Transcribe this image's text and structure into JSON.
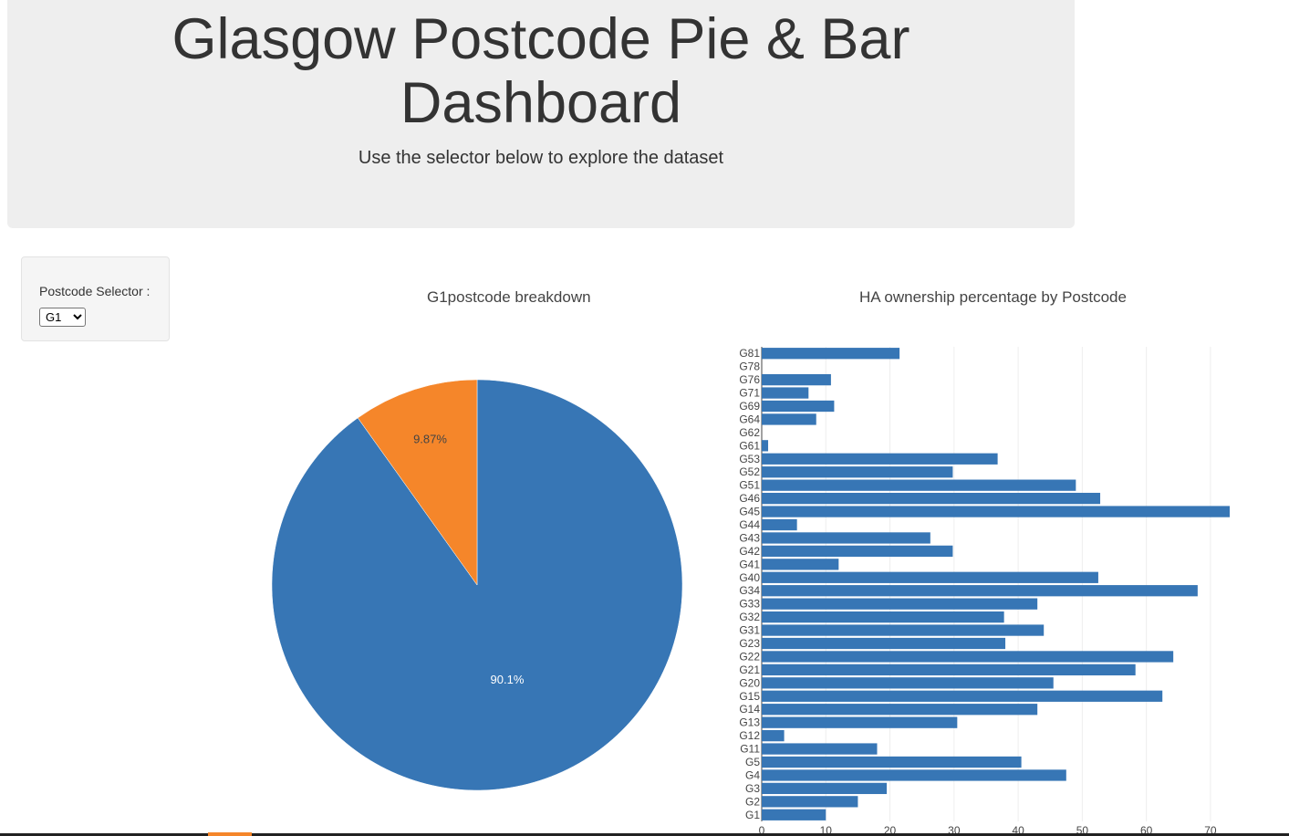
{
  "header": {
    "title_line1": "Glasgow Postcode Pie & Bar",
    "title_line2": "Dashboard",
    "subtitle": "Use the selector below to explore the dataset"
  },
  "selector": {
    "label": "Postcode Selector :",
    "selected": "G1",
    "options": [
      "G1"
    ]
  },
  "colors": {
    "blue": "#3776b5",
    "orange": "#f5862a"
  },
  "chart_data": [
    {
      "type": "pie",
      "title": "G1postcode breakdown",
      "slices": [
        {
          "label": "90.1%",
          "value": 90.13,
          "color": "#3776b5"
        },
        {
          "label": "9.87%",
          "value": 9.87,
          "color": "#f5862a"
        }
      ]
    },
    {
      "type": "bar",
      "orientation": "horizontal",
      "title": "HA ownership percentage by Postcode",
      "categories": [
        "G1",
        "G2",
        "G3",
        "G4",
        "G5",
        "G11",
        "G12",
        "G13",
        "G14",
        "G15",
        "G20",
        "G21",
        "G22",
        "G23",
        "G31",
        "G32",
        "G33",
        "G34",
        "G40",
        "G41",
        "G42",
        "G43",
        "G44",
        "G45",
        "G46",
        "G51",
        "G52",
        "G53",
        "G61",
        "G62",
        "G64",
        "G69",
        "G71",
        "G76",
        "G78",
        "G81"
      ],
      "values": [
        10,
        15,
        19.5,
        47.5,
        40.5,
        18,
        3.5,
        30.5,
        43,
        62.5,
        45.5,
        58.3,
        64.2,
        38,
        44,
        37.8,
        43,
        68,
        52.5,
        12,
        29.8,
        26.3,
        5.5,
        73,
        52.8,
        49,
        29.8,
        36.8,
        1,
        0,
        8.5,
        11.3,
        7.3,
        10.8,
        0,
        21.5
      ],
      "xticks": [
        0,
        10,
        20,
        30,
        40,
        50,
        60,
        70
      ],
      "xlim": [
        0,
        73
      ],
      "grid": true,
      "color": "#3776b5"
    }
  ]
}
